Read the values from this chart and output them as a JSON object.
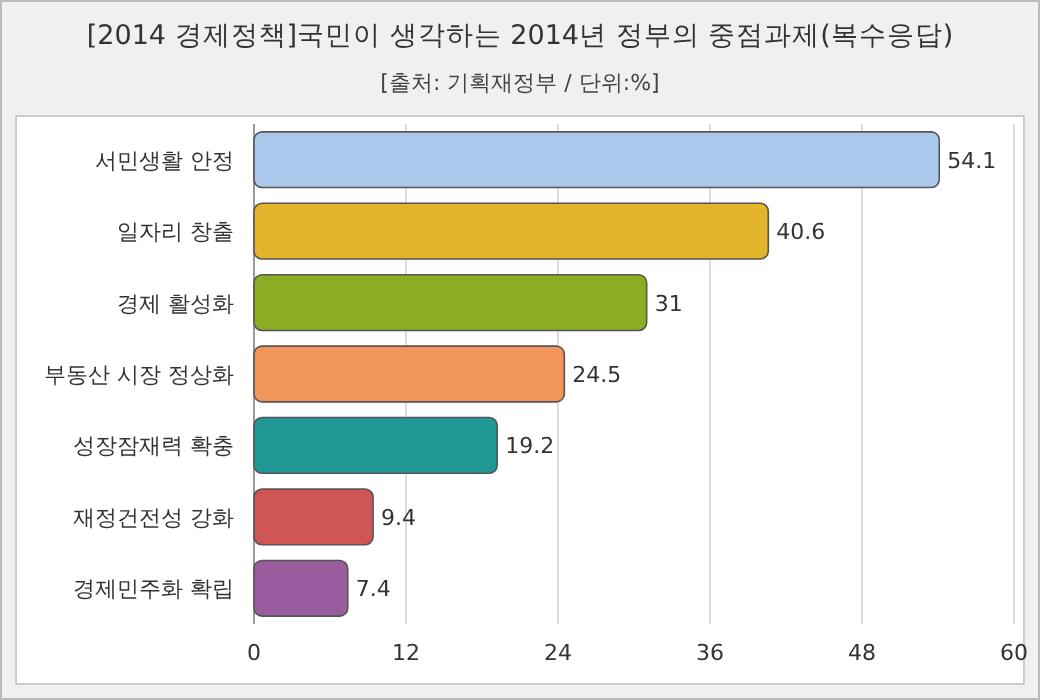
{
  "chart_data": {
    "type": "bar",
    "orientation": "horizontal",
    "title": "[2014 경제정책]국민이 생각하는 2014년 정부의 중점과제(복수응답)",
    "subtitle": "[출처: 기획재정부 / 단위:%]",
    "categories": [
      "서민생활 안정",
      "일자리 창출",
      "경제 활성화",
      "부동산 시장 정상화",
      "성장잠재력 확충",
      "재정건전성 강화",
      "경제민주화 확립"
    ],
    "values": [
      54.1,
      40.6,
      31,
      24.5,
      19.2,
      9.4,
      7.4
    ],
    "colors": [
      "#a9c8ea",
      "#e3b52a",
      "#8aad23",
      "#f2955a",
      "#1f9896",
      "#d05555",
      "#9b5c9e"
    ],
    "xlim": [
      0,
      60
    ],
    "xticks": [
      0,
      12,
      24,
      36,
      48,
      60
    ],
    "grid": "x",
    "data_labels": true
  }
}
